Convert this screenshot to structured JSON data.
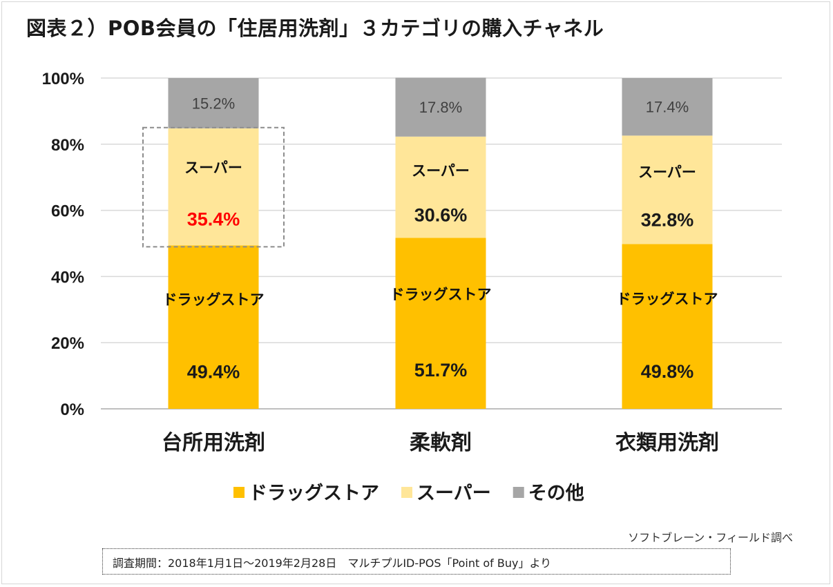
{
  "title": "図表２）POB会員の「住居用洗剤」３カテゴリの購入チャネル",
  "credit": "ソフトブレーン・フィールド調べ",
  "note": "調査期間：2018年1月1日～2019年2月28日　マルチプルID-POS「Point of Buy」より",
  "chart_data": {
    "type": "bar",
    "stacked": true,
    "categories": [
      "台所用洗剤",
      "柔軟剤",
      "衣類用洗剤"
    ],
    "ylim": [
      0,
      100
    ],
    "yticks": [
      "0%",
      "20%",
      "40%",
      "60%",
      "80%",
      "100%"
    ],
    "grid": true,
    "legend_position": "bottom",
    "series": [
      {
        "name": "ドラッグストア",
        "color": "#FFC000",
        "values": [
          49.4,
          51.7,
          49.8
        ],
        "labels": [
          "49.4%",
          "51.7%",
          "49.8%"
        ]
      },
      {
        "name": "スーパー",
        "color": "#FFE699",
        "values": [
          35.4,
          30.6,
          32.8
        ],
        "labels": [
          "35.4%",
          "30.6%",
          "32.8%"
        ]
      },
      {
        "name": "その他",
        "color": "#A6A6A6",
        "values": [
          15.2,
          17.8,
          17.4
        ],
        "labels": [
          "15.2%",
          "17.8%",
          "17.4%"
        ]
      }
    ],
    "highlight": {
      "category_index": 0,
      "series_index": 1,
      "label_color": "#FF0000"
    }
  }
}
